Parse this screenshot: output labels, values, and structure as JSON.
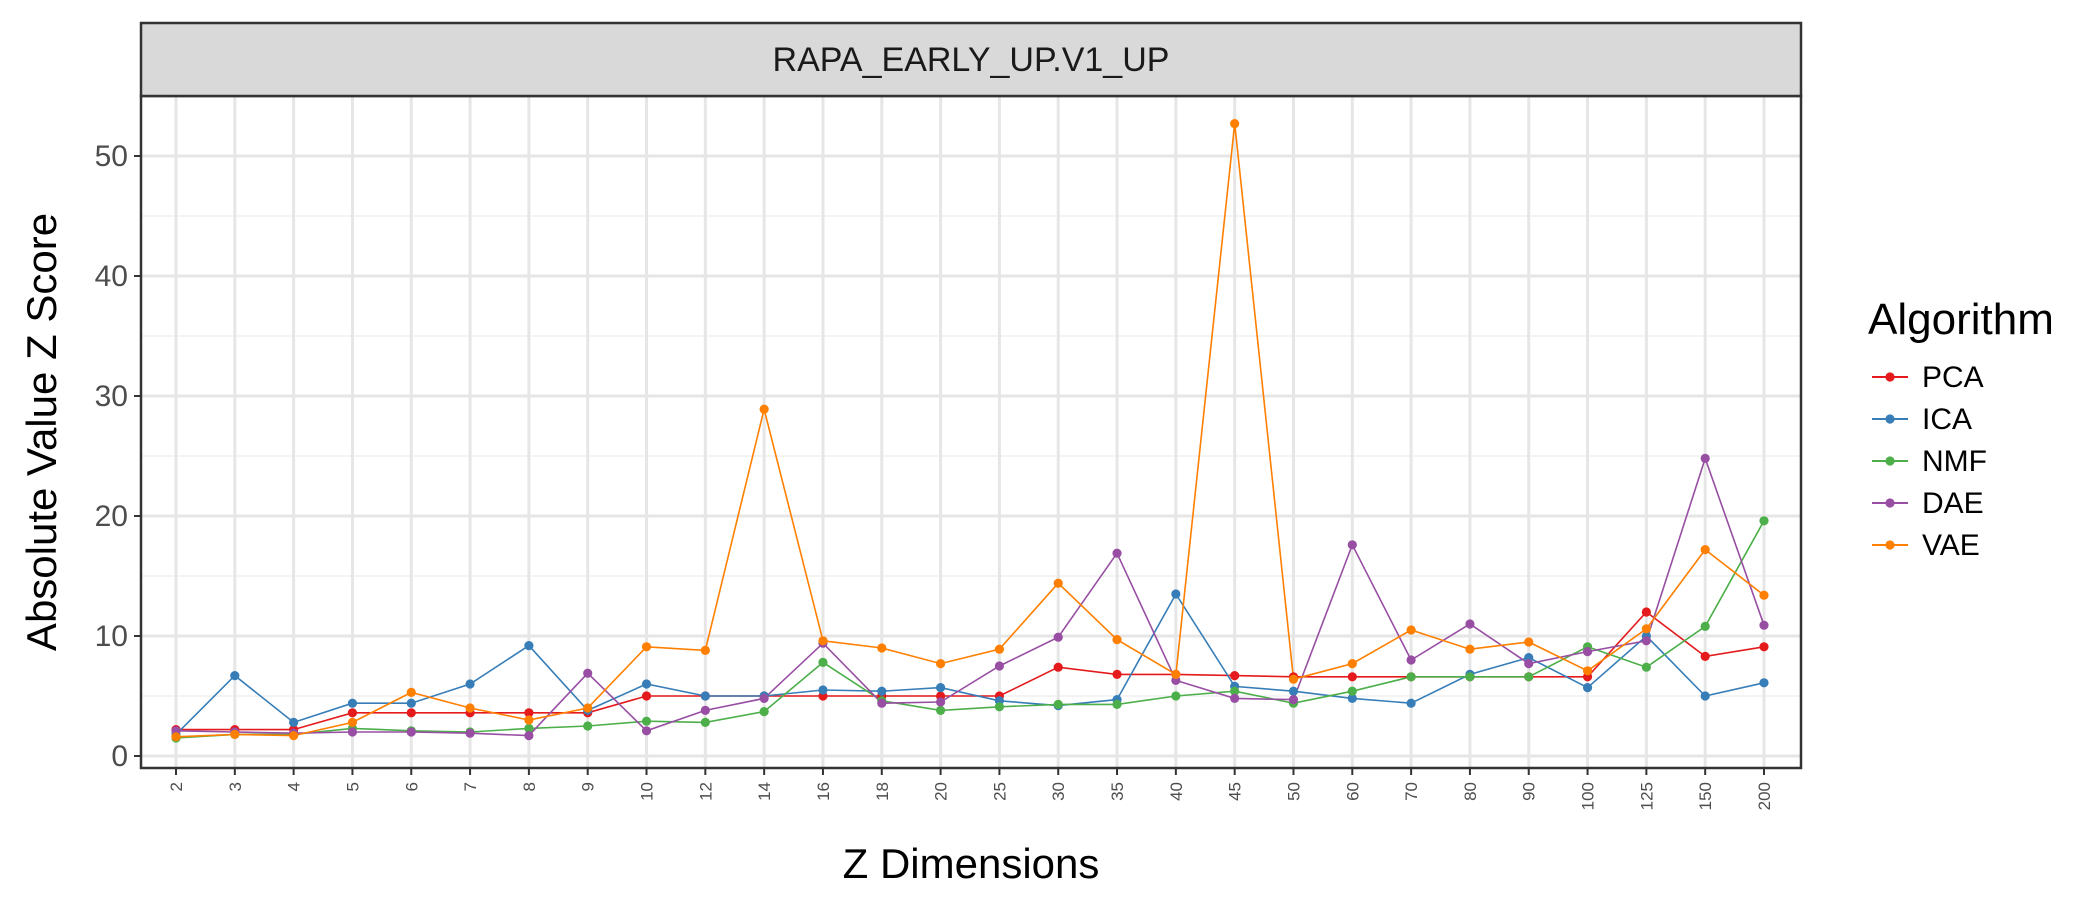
{
  "chart_data": {
    "type": "line",
    "title": "",
    "facet_label": "RAPA_EARLY_UP.V1_UP",
    "xlabel": "Z Dimensions",
    "ylabel": "Absolute Value Z Score",
    "ylim": [
      -1,
      55
    ],
    "yticks": [
      0,
      10,
      20,
      30,
      40,
      50
    ],
    "grid": true,
    "legend_title": "Algorithm",
    "legend_position": "right",
    "x": [
      "2",
      "3",
      "4",
      "5",
      "6",
      "7",
      "8",
      "9",
      "10",
      "12",
      "14",
      "16",
      "18",
      "20",
      "25",
      "30",
      "35",
      "40",
      "45",
      "50",
      "60",
      "70",
      "80",
      "90",
      "100",
      "125",
      "150",
      "200"
    ],
    "series": [
      {
        "name": "PCA",
        "color": "#e41a1c",
        "values": [
          2.2,
          2.2,
          2.2,
          3.6,
          3.6,
          3.6,
          3.6,
          3.6,
          5.0,
          5.0,
          5.0,
          5.0,
          5.0,
          5.0,
          5.0,
          7.4,
          6.8,
          6.8,
          6.7,
          6.6,
          6.6,
          6.6,
          6.6,
          6.6,
          6.6,
          12.0,
          8.3,
          9.1
        ]
      },
      {
        "name": "ICA",
        "color": "#377eb8",
        "values": [
          1.8,
          6.7,
          2.8,
          4.4,
          4.4,
          6.0,
          9.2,
          3.8,
          6.0,
          5.0,
          5.0,
          5.5,
          5.4,
          5.7,
          4.6,
          4.2,
          4.7,
          13.5,
          5.8,
          5.4,
          4.8,
          4.4,
          6.8,
          8.2,
          5.7,
          10.0,
          5.0,
          6.1
        ]
      },
      {
        "name": "NMF",
        "color": "#4daf4a",
        "values": [
          1.5,
          1.8,
          1.8,
          2.3,
          2.1,
          2.0,
          2.3,
          2.5,
          2.9,
          2.8,
          3.7,
          7.8,
          4.6,
          3.8,
          4.1,
          4.3,
          4.3,
          5.0,
          5.4,
          4.4,
          5.4,
          6.6,
          6.6,
          6.6,
          9.1,
          7.4,
          10.8,
          19.6
        ]
      },
      {
        "name": "DAE",
        "color": "#984ea3",
        "values": [
          2.1,
          2.0,
          1.9,
          2.0,
          2.0,
          1.9,
          1.7,
          6.9,
          2.1,
          3.8,
          4.8,
          9.4,
          4.4,
          4.5,
          7.5,
          9.9,
          16.9,
          6.3,
          4.8,
          4.7,
          17.6,
          8.0,
          11.0,
          7.7,
          8.7,
          9.6,
          24.8,
          10.9
        ]
      },
      {
        "name": "VAE",
        "color": "#ff7f00",
        "values": [
          1.6,
          1.8,
          1.7,
          2.8,
          5.3,
          4.0,
          3.0,
          4.0,
          9.1,
          8.8,
          28.9,
          9.6,
          9.0,
          7.7,
          8.9,
          14.4,
          9.7,
          6.8,
          52.7,
          6.4,
          7.7,
          10.5,
          8.9,
          9.5,
          7.1,
          10.6,
          17.2,
          13.4
        ]
      }
    ]
  }
}
